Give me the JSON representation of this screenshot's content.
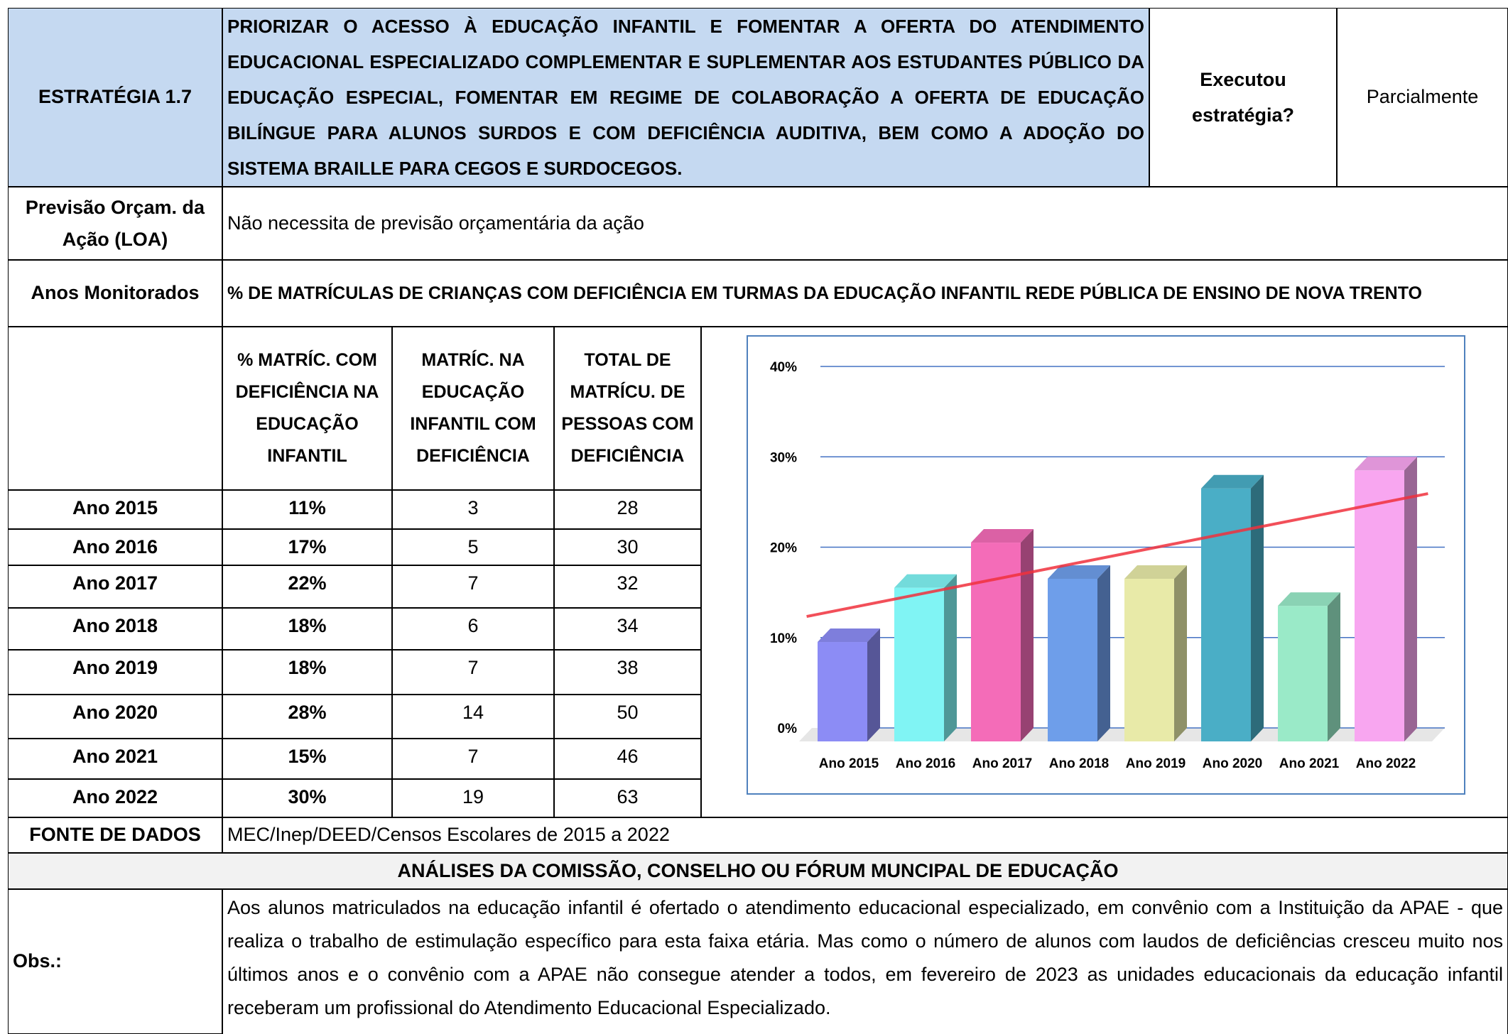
{
  "header": {
    "strategy": "ESTRATÉGIA 1.7",
    "title": "PRIORIZAR O ACESSO À EDUCAÇÃO INFANTIL E FOMENTAR A OFERTA DO ATENDIMENTO EDUCACIONAL ESPECIALIZADO COMPLEMENTAR E SUPLEMENTAR AOS ESTUDANTES PÚBLICO DA EDUCAÇÃO ESPECIAL, FOMENTAR EM REGIME DE COLABORAÇÃO A OFERTA DE EDUCAÇÃO BILÍNGUE PARA ALUNOS SURDOS E COM DEFICIÊNCIA AUDITIVA, BEM COMO A ADOÇÃO DO SISTEMA BRAILLE PARA CEGOS E SURDOCEGOS.",
    "question": "Executou estratégia?",
    "answer": "Parcialmente"
  },
  "budget": {
    "label": "Previsão Orçam. da Ação (LOA)",
    "text": "Não necessita de previsão orçamentária da ação"
  },
  "monitoring": {
    "label": "Anos Monitorados",
    "indicator": "% DE MATRÍCULAS DE CRIANÇAS COM DEFICIÊNCIA EM TURMAS DA EDUCAÇÃO INFANTIL REDE PÚBLICA DE ENSINO DE NOVA TRENTO"
  },
  "table": {
    "columns": [
      "% MATRÍC. COM DEFICIÊNCIA NA EDUCAÇÃO INFANTIL",
      "MATRÍC. NA EDUCAÇÃO INFANTIL COM DEFICIÊNCIA",
      "TOTAL DE MATRÍCU. DE PESSOAS COM DEFICIÊNCIA"
    ],
    "rows": [
      [
        "Ano 2015",
        "11%",
        "3",
        "28"
      ],
      [
        "Ano 2016",
        "17%",
        "5",
        "30"
      ],
      [
        "Ano 2017",
        "22%",
        "7",
        "32"
      ],
      [
        "Ano 2018",
        "18%",
        "6",
        "34"
      ],
      [
        "Ano 2019",
        "18%",
        "7",
        "38"
      ],
      [
        "Ano 2020",
        "28%",
        "14",
        "50"
      ],
      [
        "Ano 2021",
        "15%",
        "7",
        "46"
      ],
      [
        "Ano 2022",
        "30%",
        "19",
        "63"
      ]
    ]
  },
  "source": {
    "label": "FONTE DE DADOS",
    "text": "MEC/Inep/DEED/Censos Escolares de 2015 a 2022"
  },
  "analysis": {
    "title": "ANÁLISES DA COMISSÃO, CONSELHO OU FÓRUM MUNCIPAL DE EDUCAÇÃO"
  },
  "obs": {
    "label": "Obs.:",
    "text": "Aos alunos matriculados na educação infantil é ofertado o atendimento educacional especializado, em convênio com a Instituição da APAE - que realiza o trabalho de estimulação específico para esta faixa etária. Mas como o número de alunos com laudos de deficiências cresceu muito nos últimos anos e o convênio com a APAE não consegue atender a todos, em fevereiro de 2023 as unidades educacionais da educação infantil receberam um profissional do Atendimento Educacional Especializado."
  },
  "chart_data": {
    "type": "bar3d",
    "categories": [
      "Ano 2015",
      "Ano 2016",
      "Ano 2017",
      "Ano 2018",
      "Ano 2019",
      "Ano 2020",
      "Ano 2021",
      "Ano 2022"
    ],
    "values": [
      11,
      17,
      22,
      18,
      18,
      28,
      15,
      30
    ],
    "colors": [
      "#8c8cf5",
      "#80f4f4",
      "#f46cb8",
      "#6e9eea",
      "#e8eaa8",
      "#4aaec6",
      "#9aeac8",
      "#f8a6f0"
    ],
    "ylim": [
      0,
      40
    ],
    "yticks": [
      {
        "value": 0,
        "label": "0%"
      },
      {
        "value": 10,
        "label": "10%"
      },
      {
        "value": 20,
        "label": "20%"
      },
      {
        "value": 30,
        "label": "30%"
      },
      {
        "value": 40,
        "label": "40%"
      }
    ],
    "grid": true,
    "trendline": true,
    "trendline_color": "#f0303c"
  }
}
